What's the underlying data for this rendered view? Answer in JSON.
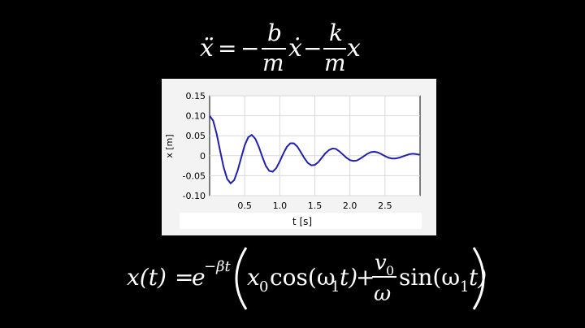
{
  "equation_top": {
    "lhs": "ẍ",
    "equals": "=",
    "minus1": "−",
    "frac1_num": "b",
    "frac1_den": "m",
    "term1": "ẋ",
    "minus2": "−",
    "frac2_num": "k",
    "frac2_den": "m",
    "term2": "x"
  },
  "equation_bottom": {
    "lhs": "x(t)",
    "equals": "=",
    "exp_base": "e",
    "exponent": "−βt",
    "x0_base": "x",
    "x0_sub": "0",
    "cos_open": "cos(ω",
    "cos_sub": "1",
    "cos_close": "t)",
    "plus": "+",
    "v0_base": "v",
    "v0_sub": "0",
    "omega_den": "ω",
    "sin_open": "sin(ω",
    "sin_sub": "1",
    "sin_close": "t)"
  },
  "colors": {
    "background": "#000000",
    "curve": "#1f1fb4",
    "panel": "#f3f3f3"
  },
  "chart_data": {
    "type": "line",
    "title": "",
    "xlabel": "t [s]",
    "ylabel": "x [m]",
    "xlim": [
      0,
      3.0
    ],
    "ylim": [
      -0.1,
      0.15
    ],
    "xticks": [
      "0.5",
      "1.0",
      "1.5",
      "2.0",
      "2.5"
    ],
    "yticks": [
      "0.15",
      "0.10",
      "0.05",
      "0",
      "-0.05",
      "-0.10"
    ],
    "grid": true,
    "legend": "none",
    "series": [
      {
        "x": [
          0,
          0.05,
          0.1,
          0.15,
          0.2,
          0.25,
          0.3,
          0.35,
          0.4,
          0.45,
          0.5,
          0.55,
          0.6,
          0.65,
          0.7,
          0.75,
          0.8,
          0.85,
          0.9,
          0.95,
          1.0,
          1.05,
          1.1,
          1.15,
          1.2,
          1.25,
          1.3,
          1.35,
          1.4,
          1.45,
          1.5,
          1.55,
          1.6,
          1.65,
          1.7,
          1.75,
          1.8,
          1.85,
          1.9,
          1.95,
          2.0,
          2.05,
          2.1,
          2.15,
          2.2,
          2.25,
          2.3,
          2.35,
          2.4,
          2.45,
          2.5,
          2.55,
          2.6,
          2.65,
          2.7,
          2.75,
          2.8,
          2.85,
          2.9,
          2.95,
          3.0
        ],
        "y": [
          0.1,
          0.088,
          0.055,
          0.012,
          -0.029,
          -0.058,
          -0.069,
          -0.061,
          -0.037,
          -0.005,
          0.026,
          0.046,
          0.052,
          0.043,
          0.023,
          -0.002,
          -0.025,
          -0.038,
          -0.04,
          -0.031,
          -0.014,
          0.005,
          0.022,
          0.031,
          0.031,
          0.023,
          0.009,
          -0.006,
          -0.018,
          -0.024,
          -0.023,
          -0.016,
          -0.005,
          0.006,
          0.014,
          0.018,
          0.017,
          0.011,
          0.003,
          -0.005,
          -0.011,
          -0.013,
          -0.012,
          -0.007,
          -0.001,
          0.005,
          0.009,
          0.01,
          0.008,
          0.004,
          -0.001,
          -0.005,
          -0.007,
          -0.007,
          -0.005,
          -0.002,
          0.001,
          0.004,
          0.005,
          0.004,
          0.002
        ]
      }
    ]
  }
}
